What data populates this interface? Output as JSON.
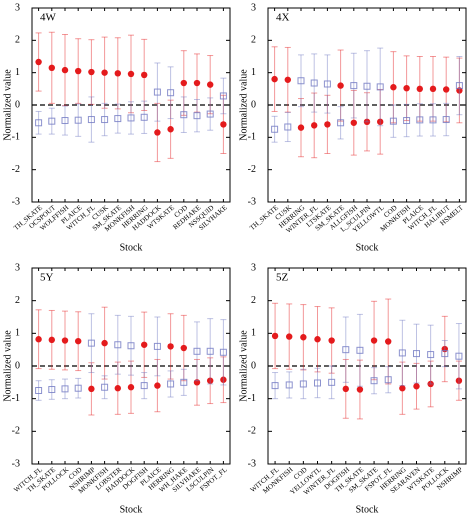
{
  "chart_data": [
    {
      "type": "dot",
      "title": "4W",
      "x_label": "Stock",
      "y_label": "Normalized value",
      "categories": [
        "TH_SKATE",
        "OCSPOUT",
        "WOLFFISH",
        "PLAICE",
        "WITCH_FL",
        "CUSK",
        "SM_SKATE",
        "MONKFISH",
        "HERRING",
        "HADDOCK",
        "WTSKATE",
        "COD",
        "REDHAKE",
        "NSSQUID",
        "SILVHAKE"
      ],
      "series": [
        {
          "color": "#e41a1c",
          "marker": "circle",
          "values": [
            1.33,
            1.15,
            1.08,
            1.05,
            1.02,
            1.0,
            0.98,
            0.96,
            0.93,
            -0.85,
            -0.75,
            0.68,
            0.68,
            0.63,
            -0.6
          ],
          "errors": [
            0.9,
            1.1,
            1.1,
            1.0,
            1.0,
            1.1,
            1.1,
            1.2,
            1.1,
            0.9,
            0.9,
            1.0,
            0.9,
            0.9,
            0.9
          ]
        },
        {
          "color": "#6f77c2",
          "marker": "square",
          "values": [
            -0.55,
            -0.5,
            -0.48,
            -0.47,
            -0.45,
            -0.45,
            -0.42,
            -0.4,
            -0.38,
            0.4,
            0.38,
            -0.3,
            -0.33,
            -0.28,
            0.28
          ],
          "errors": [
            0.35,
            0.4,
            0.45,
            0.5,
            0.7,
            0.5,
            0.45,
            0.5,
            0.5,
            0.9,
            0.8,
            0.55,
            0.5,
            0.5,
            0.55
          ]
        }
      ],
      "ylim": [
        -3,
        3
      ],
      "yticks": [
        -3,
        -2,
        -1,
        0,
        1,
        2,
        3
      ],
      "reference_line": 0
    },
    {
      "type": "dot",
      "title": "4X",
      "x_label": "Stock",
      "y_label": "Normalized value",
      "categories": [
        "TH_SKATE",
        "CUSK",
        "HERRING",
        "WINTER_FL",
        "LTSKATE",
        "SM_SKATE",
        "ALLGFISH",
        "L_SCULPIN",
        "YELLOWTL",
        "COD",
        "MONKFISH",
        "PLAICE",
        "WITCH_FL",
        "HALIBUT",
        "HSMELT"
      ],
      "series": [
        {
          "color": "#e41a1c",
          "marker": "circle",
          "values": [
            0.8,
            0.78,
            -0.7,
            -0.63,
            -0.6,
            0.6,
            -0.55,
            -0.52,
            -0.52,
            0.55,
            0.52,
            0.5,
            0.5,
            0.48,
            0.45
          ],
          "errors": [
            1.0,
            1.0,
            0.9,
            1.0,
            0.9,
            1.1,
            1.0,
            0.9,
            1.0,
            1.1,
            1.0,
            1.0,
            1.0,
            1.0,
            1.0
          ]
        },
        {
          "color": "#6f77c2",
          "marker": "square",
          "values": [
            -0.75,
            -0.68,
            0.75,
            0.68,
            0.65,
            -0.55,
            0.6,
            0.58,
            0.56,
            -0.5,
            -0.48,
            -0.46,
            -0.46,
            -0.45,
            0.6
          ],
          "errors": [
            0.4,
            0.45,
            0.8,
            0.9,
            0.9,
            0.5,
            1.0,
            1.1,
            1.2,
            0.5,
            0.5,
            0.5,
            0.5,
            0.5,
            0.9
          ]
        }
      ],
      "ylim": [
        -3,
        3
      ],
      "yticks": [
        -3,
        -2,
        -1,
        0,
        1,
        2,
        3
      ],
      "reference_line": 0
    },
    {
      "type": "dot",
      "title": "5Y",
      "x_label": "Stock",
      "y_label": "Normalized value",
      "categories": [
        "WITCH_FL",
        "TH_SKATE",
        "POLLOCK",
        "COD",
        "NSHRIMP",
        "MONKFISH",
        "LOBSTER",
        "HADDOCK",
        "DOGFISH",
        "PLAICE",
        "HERRING",
        "WH_HAKE",
        "SILVHAKE",
        "LSCULPIN",
        "FSPOT_FL"
      ],
      "series": [
        {
          "color": "#e41a1c",
          "marker": "circle",
          "values": [
            0.82,
            0.8,
            0.78,
            0.76,
            -0.7,
            0.7,
            -0.68,
            -0.65,
            0.65,
            -0.6,
            0.6,
            0.55,
            -0.5,
            -0.45,
            -0.42
          ],
          "errors": [
            0.9,
            0.9,
            0.9,
            0.9,
            0.8,
            1.1,
            0.8,
            0.8,
            1.0,
            0.8,
            1.0,
            1.0,
            0.7,
            0.7,
            0.7
          ]
        },
        {
          "color": "#6f77c2",
          "marker": "square",
          "values": [
            -0.75,
            -0.72,
            -0.7,
            -0.68,
            0.7,
            -0.65,
            0.65,
            0.62,
            -0.6,
            0.6,
            -0.55,
            -0.5,
            0.45,
            0.45,
            0.42
          ],
          "errors": [
            0.3,
            0.3,
            0.3,
            0.3,
            0.9,
            0.35,
            0.9,
            0.9,
            0.4,
            0.9,
            0.4,
            0.4,
            0.9,
            1.0,
            1.0
          ]
        }
      ],
      "ylim": [
        -3,
        3
      ],
      "yticks": [
        -3,
        -2,
        -1,
        0,
        1,
        2,
        3
      ],
      "reference_line": 0
    },
    {
      "type": "dot",
      "title": "5Z",
      "x_label": "Stock",
      "y_label": "Normalized value",
      "categories": [
        "WITCH_FL",
        "MONKFISH",
        "COD",
        "YELLOWTL",
        "WINTER_FL",
        "DOGFISH",
        "TH_SKATE",
        "SM_SKATE",
        "FSPOT_FL",
        "HERRING",
        "SEARAVEN",
        "WTSKATE",
        "POLLOCK",
        "NSHRIMP"
      ],
      "series": [
        {
          "color": "#e41a1c",
          "marker": "circle",
          "values": [
            0.92,
            0.9,
            0.88,
            0.82,
            0.78,
            -0.7,
            -0.72,
            0.78,
            0.75,
            -0.68,
            -0.62,
            -0.55,
            0.52,
            -0.45
          ],
          "errors": [
            1.0,
            1.0,
            1.0,
            1.0,
            1.0,
            0.9,
            0.9,
            1.2,
            1.3,
            0.8,
            0.7,
            0.7,
            1.0,
            0.6
          ]
        },
        {
          "color": "#6f77c2",
          "marker": "square",
          "values": [
            -0.6,
            -0.58,
            -0.55,
            -0.52,
            -0.5,
            0.5,
            0.48,
            -0.45,
            -0.42,
            0.4,
            0.38,
            0.35,
            0.38,
            0.3
          ],
          "errors": [
            0.4,
            0.4,
            0.45,
            0.45,
            0.5,
            1.0,
            1.1,
            0.4,
            0.4,
            1.0,
            0.9,
            0.9,
            0.4,
            1.0
          ]
        }
      ],
      "ylim": [
        -3,
        3
      ],
      "yticks": [
        -3,
        -2,
        -1,
        0,
        1,
        2,
        3
      ],
      "reference_line": 0
    }
  ]
}
